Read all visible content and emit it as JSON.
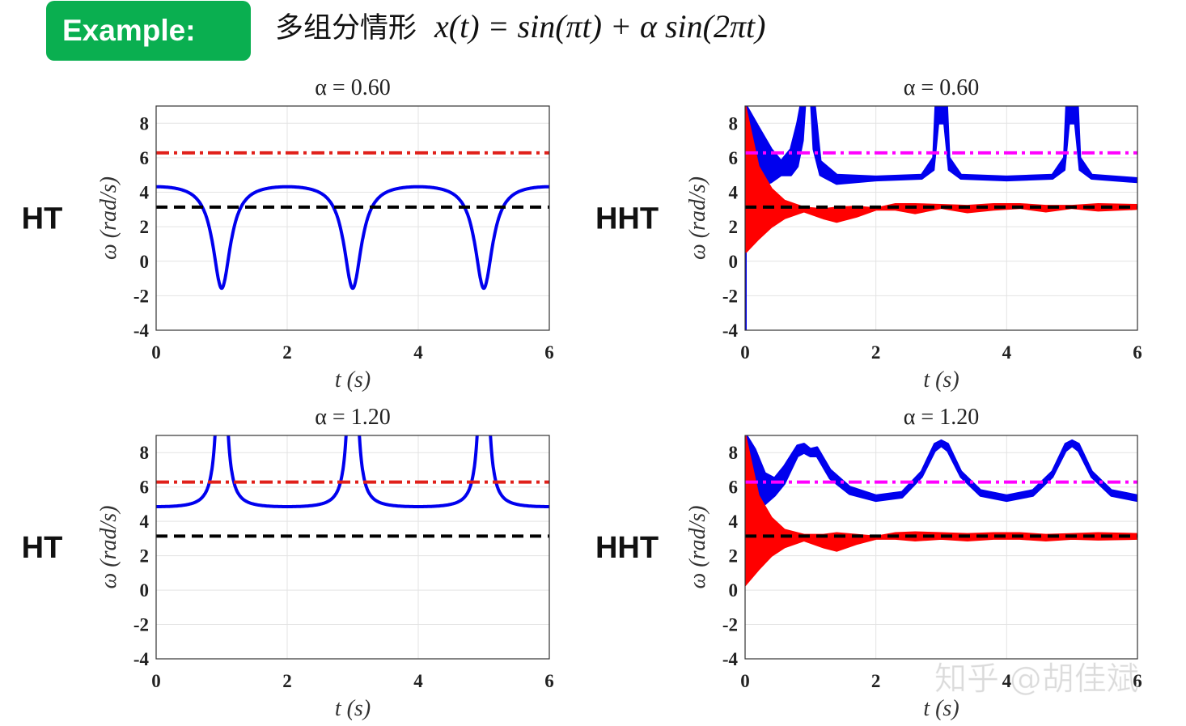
{
  "header": {
    "badge": "Example:",
    "title_cn": "多组分情形",
    "formula": "x(t) = sin(πt) + α sin(2πt)"
  },
  "watermark": "知乎 @胡佳斌",
  "colors": {
    "blue": "#0000ee",
    "red": "#ff0000",
    "magenta": "#ff00ff",
    "black": "#000000",
    "dashdot_red": "#e0201a"
  },
  "chart_data": [
    {
      "type": "line",
      "method": "HT",
      "side_label": "HT",
      "title": "α = 0.60",
      "alpha": 0.6,
      "xlabel": "t (s)",
      "ylabel": "ω (rad/s)",
      "xlim": [
        0,
        6
      ],
      "ylim": [
        -4,
        9
      ],
      "xticks": [
        0,
        2,
        4,
        6
      ],
      "yticks": [
        -4,
        -2,
        0,
        2,
        4,
        6,
        8
      ],
      "grid": true,
      "ref_lines": [
        {
          "y": 6.2832,
          "style": "dash-dot",
          "color": "#e0201a"
        },
        {
          "y": 3.1416,
          "style": "dashed",
          "color": "#000000"
        }
      ],
      "curve": "instantaneous frequency of x(t)",
      "curve_color": "#0000ee"
    },
    {
      "type": "area",
      "method": "HHT",
      "side_label": "HHT",
      "title": "α = 0.60",
      "alpha": 0.6,
      "xlabel": "t (s)",
      "ylabel": "ω (rad/s)",
      "xlim": [
        0,
        6
      ],
      "ylim": [
        -4,
        9
      ],
      "xticks": [
        0,
        2,
        4,
        6
      ],
      "yticks": [
        -4,
        -2,
        0,
        2,
        4,
        6,
        8
      ],
      "grid": true,
      "ref_lines": [
        {
          "y": 6.2832,
          "style": "dash-dot",
          "color": "#ff00ff"
        },
        {
          "y": 3.1416,
          "style": "dashed",
          "color": "#000000"
        }
      ],
      "bands": [
        {
          "color": "#0000ee",
          "points": [
            [
              0.02,
              4.0,
              9.0
            ],
            [
              0.2,
              4.3,
              7.8
            ],
            [
              0.4,
              4.6,
              6.5
            ],
            [
              0.55,
              5.0,
              5.8
            ],
            [
              0.7,
              5.0,
              6.5
            ],
            [
              0.8,
              5.5,
              8.0
            ],
            [
              0.88,
              7.0,
              9.6
            ],
            [
              0.93,
              10,
              14
            ],
            [
              1.0,
              10,
              14
            ],
            [
              1.05,
              6.5,
              9.5
            ],
            [
              1.15,
              5.0,
              5.8
            ],
            [
              1.4,
              4.5,
              5.0
            ],
            [
              2.0,
              4.7,
              4.9
            ],
            [
              2.7,
              4.8,
              5.0
            ],
            [
              2.88,
              5.3,
              6.0
            ],
            [
              2.95,
              8,
              12
            ],
            [
              3.05,
              8,
              12
            ],
            [
              3.12,
              5.3,
              6.0
            ],
            [
              3.3,
              4.8,
              5.0
            ],
            [
              4.0,
              4.7,
              4.9
            ],
            [
              4.7,
              4.8,
              5.0
            ],
            [
              4.88,
              5.3,
              6.0
            ],
            [
              4.95,
              8,
              12
            ],
            [
              5.05,
              8,
              12
            ],
            [
              5.12,
              5.3,
              6.0
            ],
            [
              5.3,
              4.8,
              5.0
            ],
            [
              6.0,
              4.6,
              4.8
            ]
          ]
        },
        {
          "color": "#ff0000",
          "points": [
            [
              0,
              0.5,
              9.0
            ],
            [
              0.2,
              1.3,
              5.5
            ],
            [
              0.4,
              2.0,
              4.2
            ],
            [
              0.6,
              2.5,
              3.5
            ],
            [
              0.9,
              2.9,
              3.1
            ],
            [
              1.2,
              2.5,
              3.0
            ],
            [
              1.4,
              2.3,
              3.1
            ],
            [
              1.7,
              2.6,
              3.15
            ],
            [
              2.0,
              3.0,
              3.05
            ],
            [
              2.3,
              3.0,
              3.3
            ],
            [
              2.6,
              2.8,
              3.3
            ],
            [
              3.0,
              3.1,
              3.25
            ],
            [
              3.4,
              2.85,
              3.2
            ],
            [
              3.8,
              3.0,
              3.3
            ],
            [
              4.2,
              3.1,
              3.3
            ],
            [
              4.6,
              2.9,
              3.2
            ],
            [
              5.0,
              3.1,
              3.2
            ],
            [
              5.4,
              2.95,
              3.3
            ],
            [
              6.0,
              3.05,
              3.25
            ]
          ]
        }
      ],
      "lines": [
        {
          "color": "#0000ee",
          "points": [
            [
              0,
              0.5
            ],
            [
              0,
              -4
            ]
          ]
        }
      ]
    },
    {
      "type": "line",
      "method": "HT",
      "side_label": "HT",
      "title": "α = 1.20",
      "alpha": 1.2,
      "xlabel": "t (s)",
      "ylabel": "ω (rad/s)",
      "xlim": [
        0,
        6
      ],
      "ylim": [
        -4,
        9
      ],
      "xticks": [
        0,
        2,
        4,
        6
      ],
      "yticks": [
        -4,
        -2,
        0,
        2,
        4,
        6,
        8
      ],
      "grid": true,
      "ref_lines": [
        {
          "y": 6.2832,
          "style": "dash-dot",
          "color": "#e0201a"
        },
        {
          "y": 3.1416,
          "style": "dashed",
          "color": "#000000"
        }
      ],
      "curve": "instantaneous frequency of x(t)",
      "curve_color": "#0000ee"
    },
    {
      "type": "area",
      "method": "HHT",
      "side_label": "HHT",
      "title": "α = 1.20",
      "alpha": 1.2,
      "xlabel": "t (s)",
      "ylabel": "ω (rad/s)",
      "xlim": [
        0,
        6
      ],
      "ylim": [
        -4,
        9
      ],
      "xticks": [
        0,
        2,
        4,
        6
      ],
      "yticks": [
        -4,
        -2,
        0,
        2,
        4,
        6,
        8
      ],
      "grid": true,
      "ref_lines": [
        {
          "y": 6.2832,
          "style": "dash-dot",
          "color": "#ff00ff"
        },
        {
          "y": 3.1416,
          "style": "dashed",
          "color": "#000000"
        }
      ],
      "bands": [
        {
          "color": "#0000ee",
          "points": [
            [
              0.02,
              8.0,
              9.0
            ],
            [
              0.15,
              5.8,
              8.2
            ],
            [
              0.3,
              5.0,
              6.8
            ],
            [
              0.45,
              5.5,
              6.5
            ],
            [
              0.6,
              6.2,
              7.2
            ],
            [
              0.8,
              7.8,
              8.4
            ],
            [
              0.9,
              8.0,
              8.5
            ],
            [
              1.0,
              7.8,
              8.2
            ],
            [
              1.1,
              7.8,
              8.3
            ],
            [
              1.3,
              6.5,
              7.0
            ],
            [
              1.6,
              5.6,
              6.0
            ],
            [
              2.0,
              5.2,
              5.5
            ],
            [
              2.4,
              5.4,
              5.7
            ],
            [
              2.7,
              6.6,
              6.9
            ],
            [
              2.9,
              8.1,
              8.5
            ],
            [
              3.0,
              8.4,
              8.7
            ],
            [
              3.1,
              8.1,
              8.5
            ],
            [
              3.3,
              6.6,
              6.9
            ],
            [
              3.6,
              5.5,
              5.8
            ],
            [
              4.0,
              5.2,
              5.5
            ],
            [
              4.4,
              5.5,
              5.8
            ],
            [
              4.7,
              6.6,
              6.9
            ],
            [
              4.9,
              8.1,
              8.5
            ],
            [
              5.0,
              8.4,
              8.7
            ],
            [
              5.1,
              8.1,
              8.5
            ],
            [
              5.3,
              6.6,
              6.9
            ],
            [
              5.6,
              5.5,
              5.8
            ],
            [
              6.0,
              5.2,
              5.5
            ]
          ]
        },
        {
          "color": "#ff0000",
          "points": [
            [
              0,
              0.3,
              9.0
            ],
            [
              0.2,
              1.2,
              5.5
            ],
            [
              0.4,
              2.0,
              4.2
            ],
            [
              0.6,
              2.5,
              3.5
            ],
            [
              0.9,
              2.9,
              3.2
            ],
            [
              1.2,
              2.5,
              3.2
            ],
            [
              1.4,
              2.3,
              3.3
            ],
            [
              1.7,
              2.7,
              3.2
            ],
            [
              2.0,
              3.0,
              3.1
            ],
            [
              2.3,
              3.0,
              3.3
            ],
            [
              2.6,
              2.9,
              3.35
            ],
            [
              3.0,
              3.0,
              3.3
            ],
            [
              3.4,
              2.9,
              3.25
            ],
            [
              3.8,
              3.0,
              3.3
            ],
            [
              4.2,
              3.0,
              3.3
            ],
            [
              4.6,
              2.9,
              3.2
            ],
            [
              5.0,
              3.0,
              3.25
            ],
            [
              5.4,
              2.95,
              3.3
            ],
            [
              6.0,
              3.0,
              3.25
            ]
          ]
        }
      ],
      "lines": []
    }
  ]
}
